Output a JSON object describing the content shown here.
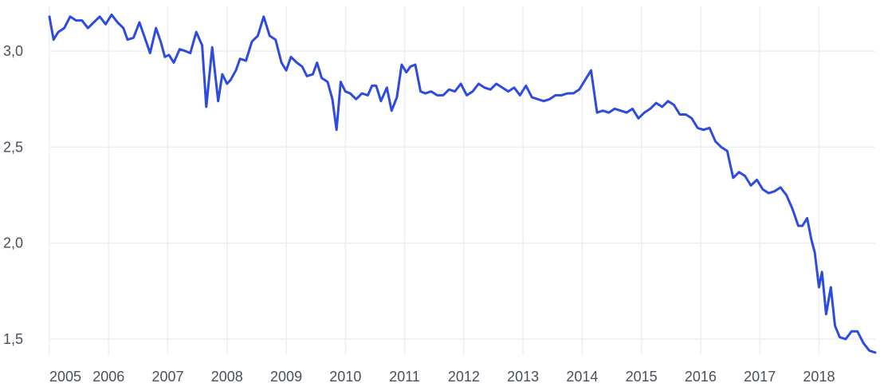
{
  "chart_data": {
    "type": "line",
    "title": "",
    "xlabel": "",
    "ylabel": "",
    "ylim": [
      1.45,
      3.2
    ],
    "xlim": [
      2005.0,
      2018.95
    ],
    "y_ticks": [
      1.5,
      2.0,
      2.5,
      3.0
    ],
    "y_tick_labels": [
      "1,5",
      "2,0",
      "2,5",
      "3,0"
    ],
    "x_ticks": [
      2005,
      2006,
      2007,
      2008,
      2009,
      2010,
      2011,
      2012,
      2013,
      2014,
      2015,
      2016,
      2017,
      2018
    ],
    "x_tick_labels": [
      "2005",
      "2006",
      "2007",
      "2008",
      "2009",
      "2010",
      "2011",
      "2012",
      "2013",
      "2014",
      "2015",
      "2016",
      "2017",
      "2018"
    ],
    "grid": {
      "horizontal": true,
      "vertical": true
    },
    "colors": {
      "line": "#2d4be0",
      "grid": "#eceef2",
      "tick_text": "#4a4f5a"
    },
    "series": [
      {
        "x": [
          2005.0,
          2005.07,
          2005.15,
          2005.25,
          2005.35,
          2005.45,
          2005.55,
          2005.65,
          2005.75,
          2005.85,
          2005.95,
          2006.05,
          2006.15,
          2006.25,
          2006.32,
          2006.42,
          2006.52,
          2006.6,
          2006.7,
          2006.8,
          2006.88,
          2006.95,
          2007.02,
          2007.1,
          2007.2,
          2007.3,
          2007.38,
          2007.48,
          2007.58,
          2007.65,
          2007.75,
          2007.85,
          2007.92,
          2008.0,
          2008.06,
          2008.15,
          2008.22,
          2008.32,
          2008.42,
          2008.52,
          2008.62,
          2008.72,
          2008.82,
          2008.92,
          2009.0,
          2009.08,
          2009.18,
          2009.27,
          2009.35,
          2009.45,
          2009.52,
          2009.6,
          2009.7,
          2009.78,
          2009.85,
          2009.92,
          2010.0,
          2010.08,
          2010.18,
          2010.28,
          2010.38,
          2010.45,
          2010.52,
          2010.6,
          2010.7,
          2010.78,
          2010.87,
          2010.95,
          2011.03,
          2011.1,
          2011.18,
          2011.27,
          2011.35,
          2011.45,
          2011.55,
          2011.65,
          2011.75,
          2011.85,
          2011.95,
          2012.05,
          2012.15,
          2012.25,
          2012.35,
          2012.45,
          2012.55,
          2012.65,
          2012.75,
          2012.85,
          2012.95,
          2013.05,
          2013.15,
          2013.25,
          2013.35,
          2013.45,
          2013.55,
          2013.65,
          2013.75,
          2013.85,
          2013.95,
          2014.03,
          2014.15,
          2014.25,
          2014.35,
          2014.45,
          2014.55,
          2014.65,
          2014.75,
          2014.85,
          2014.95,
          2015.05,
          2015.15,
          2015.25,
          2015.35,
          2015.45,
          2015.55,
          2015.65,
          2015.75,
          2015.85,
          2015.95,
          2016.05,
          2016.15,
          2016.25,
          2016.35,
          2016.45,
          2016.55,
          2016.65,
          2016.75,
          2016.85,
          2016.95,
          2017.05,
          2017.15,
          2017.25,
          2017.35,
          2017.45,
          2017.55,
          2017.65,
          2017.72,
          2017.8,
          2017.87,
          2017.93,
          2018.0,
          2018.05,
          2018.12,
          2018.2,
          2018.27,
          2018.35,
          2018.45,
          2018.55,
          2018.65,
          2018.75,
          2018.85,
          2018.95
        ],
        "values": [
          3.18,
          3.06,
          3.1,
          3.12,
          3.18,
          3.16,
          3.16,
          3.12,
          3.15,
          3.18,
          3.14,
          3.19,
          3.15,
          3.12,
          3.06,
          3.07,
          3.15,
          3.08,
          2.99,
          3.12,
          3.05,
          2.97,
          2.98,
          2.94,
          3.01,
          3.0,
          2.99,
          3.1,
          3.03,
          2.71,
          3.02,
          2.74,
          2.88,
          2.83,
          2.85,
          2.9,
          2.96,
          2.95,
          3.05,
          3.08,
          3.18,
          3.08,
          3.06,
          2.94,
          2.9,
          2.97,
          2.94,
          2.92,
          2.87,
          2.88,
          2.94,
          2.86,
          2.84,
          2.75,
          2.59,
          2.84,
          2.79,
          2.78,
          2.75,
          2.78,
          2.77,
          2.82,
          2.82,
          2.74,
          2.81,
          2.69,
          2.76,
          2.93,
          2.89,
          2.92,
          2.93,
          2.79,
          2.78,
          2.79,
          2.77,
          2.77,
          2.8,
          2.79,
          2.83,
          2.77,
          2.79,
          2.83,
          2.81,
          2.8,
          2.83,
          2.81,
          2.79,
          2.81,
          2.77,
          2.82,
          2.76,
          2.75,
          2.74,
          2.75,
          2.77,
          2.77,
          2.78,
          2.78,
          2.8,
          2.84,
          2.9,
          2.68,
          2.69,
          2.68,
          2.7,
          2.69,
          2.68,
          2.7,
          2.65,
          2.68,
          2.7,
          2.73,
          2.71,
          2.74,
          2.72,
          2.67,
          2.67,
          2.65,
          2.6,
          2.59,
          2.6,
          2.53,
          2.5,
          2.48,
          2.34,
          2.37,
          2.35,
          2.3,
          2.33,
          2.28,
          2.26,
          2.27,
          2.29,
          2.25,
          2.18,
          2.09,
          2.09,
          2.13,
          2.02,
          1.95,
          1.77,
          1.85,
          1.63,
          1.77,
          1.57,
          1.51,
          1.5,
          1.54,
          1.54,
          1.48,
          1.44,
          1.43
        ]
      }
    ]
  }
}
